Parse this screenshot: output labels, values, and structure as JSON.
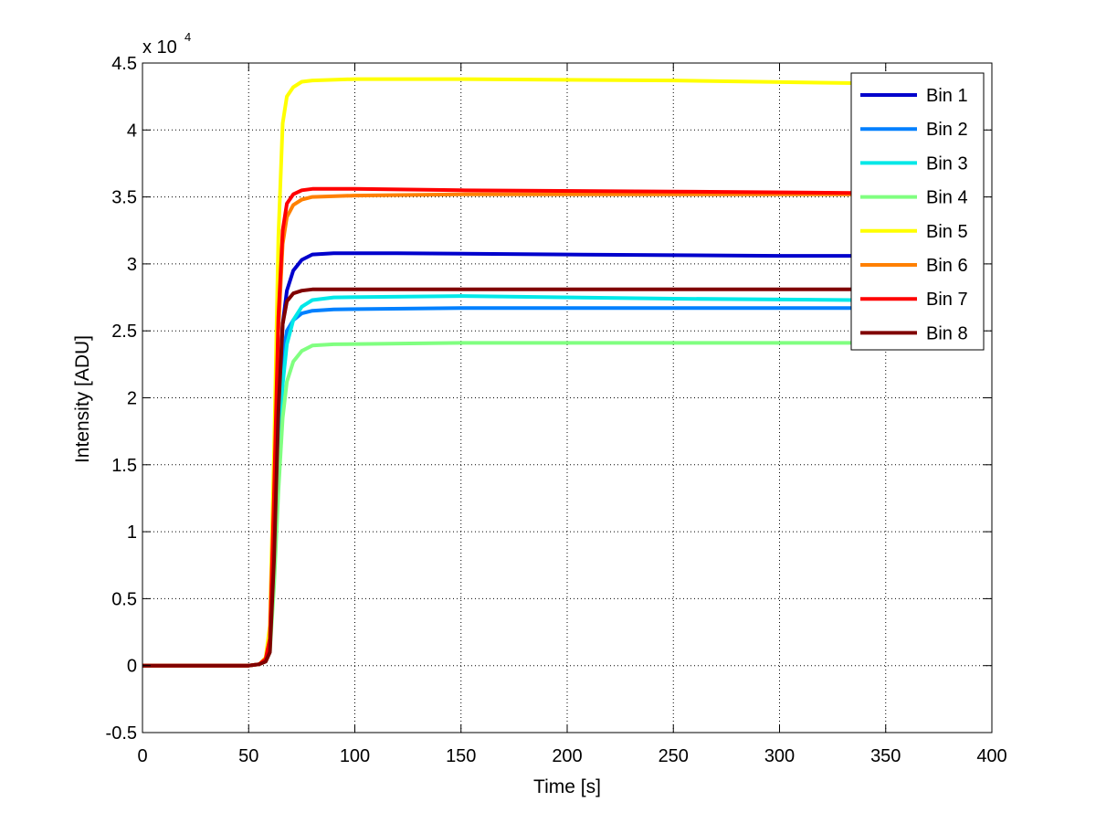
{
  "chart_data": {
    "type": "line",
    "title": "",
    "xlabel": "Time [s]",
    "ylabel": "Intensity [ADU]",
    "xlim": [
      0,
      400
    ],
    "ylim": [
      -0.5,
      4.5
    ],
    "y_multiplier_label": "x 10",
    "y_multiplier_exponent": "4",
    "xticks": [
      "0",
      "50",
      "100",
      "150",
      "200",
      "250",
      "300",
      "350",
      "400"
    ],
    "yticks": [
      "-0.5",
      "0",
      "0.5",
      "1",
      "1.5",
      "2",
      "2.5",
      "3",
      "3.5",
      "4",
      "4.5"
    ],
    "grid": true,
    "legend_position": "top-right",
    "rise_time_s": 62,
    "series": [
      {
        "name": "Bin 1",
        "color": "#0000cc",
        "points": [
          [
            0,
            0
          ],
          [
            50,
            0
          ],
          [
            55,
            0.01
          ],
          [
            58,
            0.05
          ],
          [
            60,
            0.15
          ],
          [
            62,
            0.9
          ],
          [
            64,
            1.9
          ],
          [
            66,
            2.55
          ],
          [
            68,
            2.8
          ],
          [
            71,
            2.95
          ],
          [
            75,
            3.03
          ],
          [
            80,
            3.07
          ],
          [
            90,
            3.08
          ],
          [
            120,
            3.08
          ],
          [
            200,
            3.07
          ],
          [
            300,
            3.06
          ],
          [
            335,
            3.06
          ]
        ]
      },
      {
        "name": "Bin 2",
        "color": "#0080ff",
        "points": [
          [
            0,
            0
          ],
          [
            50,
            0
          ],
          [
            55,
            0.01
          ],
          [
            58,
            0.04
          ],
          [
            60,
            0.14
          ],
          [
            62,
            0.8
          ],
          [
            64,
            1.7
          ],
          [
            66,
            2.3
          ],
          [
            68,
            2.5
          ],
          [
            71,
            2.58
          ],
          [
            75,
            2.63
          ],
          [
            80,
            2.65
          ],
          [
            90,
            2.66
          ],
          [
            150,
            2.67
          ],
          [
            250,
            2.67
          ],
          [
            335,
            2.67
          ]
        ]
      },
      {
        "name": "Bin 3",
        "color": "#00e8e8",
        "points": [
          [
            0,
            0
          ],
          [
            50,
            0
          ],
          [
            55,
            0.01
          ],
          [
            58,
            0.04
          ],
          [
            60,
            0.13
          ],
          [
            62,
            0.7
          ],
          [
            64,
            1.5
          ],
          [
            66,
            2.1
          ],
          [
            68,
            2.4
          ],
          [
            71,
            2.58
          ],
          [
            75,
            2.68
          ],
          [
            80,
            2.73
          ],
          [
            90,
            2.75
          ],
          [
            150,
            2.76
          ],
          [
            250,
            2.74
          ],
          [
            335,
            2.73
          ]
        ]
      },
      {
        "name": "Bin 4",
        "color": "#80ff80",
        "points": [
          [
            0,
            0
          ],
          [
            50,
            0
          ],
          [
            55,
            0.01
          ],
          [
            58,
            0.03
          ],
          [
            60,
            0.1
          ],
          [
            62,
            0.6
          ],
          [
            64,
            1.3
          ],
          [
            66,
            1.85
          ],
          [
            68,
            2.12
          ],
          [
            71,
            2.27
          ],
          [
            75,
            2.35
          ],
          [
            80,
            2.39
          ],
          [
            90,
            2.4
          ],
          [
            150,
            2.41
          ],
          [
            250,
            2.41
          ],
          [
            335,
            2.41
          ]
        ]
      },
      {
        "name": "Bin 5",
        "color": "#ffff00",
        "points": [
          [
            0,
            0
          ],
          [
            50,
            0
          ],
          [
            55,
            0.01
          ],
          [
            58,
            0.06
          ],
          [
            60,
            0.3
          ],
          [
            62,
            1.6
          ],
          [
            64,
            3.2
          ],
          [
            66,
            4.05
          ],
          [
            68,
            4.25
          ],
          [
            71,
            4.32
          ],
          [
            75,
            4.36
          ],
          [
            80,
            4.37
          ],
          [
            100,
            4.38
          ],
          [
            150,
            4.38
          ],
          [
            250,
            4.37
          ],
          [
            335,
            4.35
          ]
        ]
      },
      {
        "name": "Bin 6",
        "color": "#ff8000",
        "points": [
          [
            0,
            0
          ],
          [
            50,
            0
          ],
          [
            55,
            0.01
          ],
          [
            58,
            0.05
          ],
          [
            60,
            0.2
          ],
          [
            62,
            1.2
          ],
          [
            64,
            2.5
          ],
          [
            66,
            3.15
          ],
          [
            68,
            3.35
          ],
          [
            71,
            3.44
          ],
          [
            75,
            3.48
          ],
          [
            80,
            3.5
          ],
          [
            100,
            3.51
          ],
          [
            150,
            3.52
          ],
          [
            250,
            3.52
          ],
          [
            335,
            3.52
          ]
        ]
      },
      {
        "name": "Bin 7",
        "color": "#ff0000",
        "points": [
          [
            0,
            0
          ],
          [
            50,
            0
          ],
          [
            55,
            0.01
          ],
          [
            58,
            0.05
          ],
          [
            60,
            0.2
          ],
          [
            62,
            1.3
          ],
          [
            64,
            2.6
          ],
          [
            66,
            3.25
          ],
          [
            68,
            3.45
          ],
          [
            71,
            3.52
          ],
          [
            75,
            3.55
          ],
          [
            80,
            3.56
          ],
          [
            100,
            3.56
          ],
          [
            150,
            3.55
          ],
          [
            250,
            3.54
          ],
          [
            335,
            3.53
          ]
        ]
      },
      {
        "name": "Bin 8",
        "color": "#800000",
        "points": [
          [
            0,
            0
          ],
          [
            50,
            0
          ],
          [
            55,
            0.01
          ],
          [
            58,
            0.03
          ],
          [
            60,
            0.1
          ],
          [
            62,
            0.8
          ],
          [
            64,
            1.9
          ],
          [
            66,
            2.55
          ],
          [
            68,
            2.72
          ],
          [
            71,
            2.78
          ],
          [
            75,
            2.8
          ],
          [
            80,
            2.81
          ],
          [
            100,
            2.81
          ],
          [
            150,
            2.81
          ],
          [
            250,
            2.81
          ],
          [
            335,
            2.81
          ]
        ]
      }
    ]
  }
}
